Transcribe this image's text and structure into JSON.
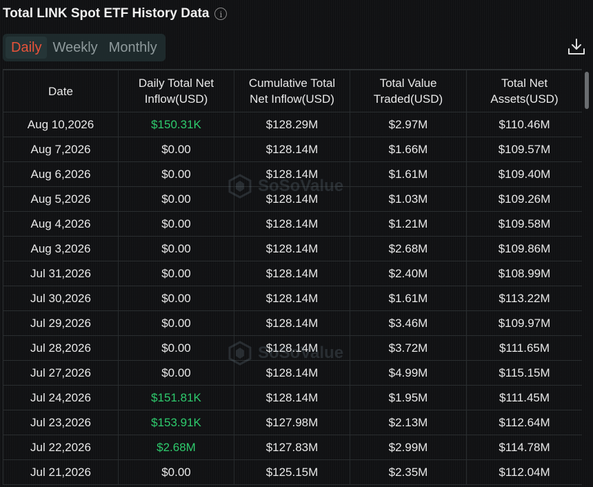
{
  "header": {
    "title": "Total LINK Spot ETF History Data",
    "info_icon": "info-icon"
  },
  "tabs": [
    {
      "label": "Daily",
      "active": true
    },
    {
      "label": "Weekly",
      "active": false
    },
    {
      "label": "Monthly",
      "active": false
    }
  ],
  "toolbar": {
    "download_icon": "download-icon"
  },
  "table": {
    "columns": [
      {
        "line1": "Date",
        "line2": ""
      },
      {
        "line1": "Daily Total Net",
        "line2": "Inflow(USD)"
      },
      {
        "line1": "Cumulative Total",
        "line2": "Net Inflow(USD)"
      },
      {
        "line1": "Total Value",
        "line2": "Traded(USD)"
      },
      {
        "line1": "Total Net",
        "line2": "Assets(USD)"
      }
    ],
    "rows": [
      [
        "Aug 10,2026",
        "$150.31K",
        "$128.29M",
        "$2.97M",
        "$110.46M"
      ],
      [
        "Aug 7,2026",
        "$0.00",
        "$128.14M",
        "$1.66M",
        "$109.57M"
      ],
      [
        "Aug 6,2026",
        "$0.00",
        "$128.14M",
        "$1.61M",
        "$109.40M"
      ],
      [
        "Aug 5,2026",
        "$0.00",
        "$128.14M",
        "$1.03M",
        "$109.26M"
      ],
      [
        "Aug 4,2026",
        "$0.00",
        "$128.14M",
        "$1.21M",
        "$109.58M"
      ],
      [
        "Aug 3,2026",
        "$0.00",
        "$128.14M",
        "$2.68M",
        "$109.86M"
      ],
      [
        "Jul 31,2026",
        "$0.00",
        "$128.14M",
        "$2.40M",
        "$108.99M"
      ],
      [
        "Jul 30,2026",
        "$0.00",
        "$128.14M",
        "$1.61M",
        "$113.22M"
      ],
      [
        "Jul 29,2026",
        "$0.00",
        "$128.14M",
        "$3.46M",
        "$109.97M"
      ],
      [
        "Jul 28,2026",
        "$0.00",
        "$128.14M",
        "$3.72M",
        "$111.65M"
      ],
      [
        "Jul 27,2026",
        "$0.00",
        "$128.14M",
        "$4.99M",
        "$115.15M"
      ],
      [
        "Jul 24,2026",
        "$151.81K",
        "$128.14M",
        "$1.95M",
        "$111.45M"
      ],
      [
        "Jul 23,2026",
        "$153.91K",
        "$127.98M",
        "$2.13M",
        "$112.64M"
      ],
      [
        "Jul 22,2026",
        "$2.68M",
        "$127.83M",
        "$2.99M",
        "$114.78M"
      ],
      [
        "Jul 21,2026",
        "$0.00",
        "$125.15M",
        "$2.35M",
        "$112.04M"
      ]
    ],
    "positive_color": "#2ecb6d"
  },
  "watermark": {
    "text": "SoSoValue"
  },
  "colors": {
    "active_tab": "#e8533a",
    "background": "#101113"
  }
}
